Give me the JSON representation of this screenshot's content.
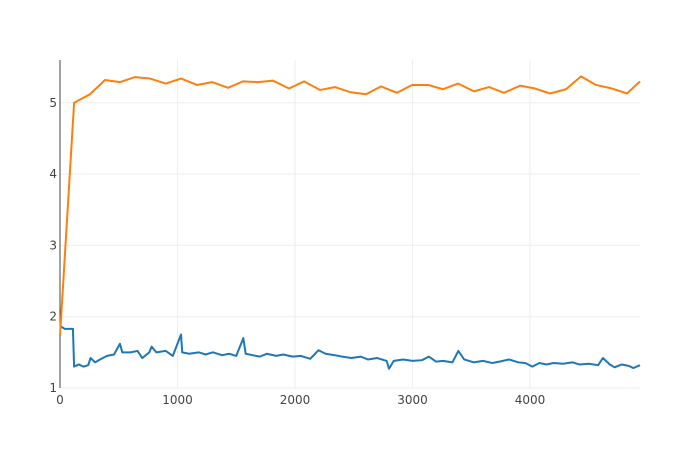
{
  "chart_data": {
    "type": "line",
    "xlim": [
      0,
      4936
    ],
    "xticks": [
      0,
      1000,
      2000,
      3000,
      4000
    ],
    "ylim": [
      1,
      5.6
    ],
    "yticks": [
      1,
      2,
      3,
      4,
      5
    ],
    "grid": true,
    "series": [
      {
        "color": "#1f77b4",
        "x": [
          0,
          40,
          110,
          120,
          160,
          200,
          240,
          260,
          300,
          340,
          400,
          460,
          510,
          530,
          600,
          660,
          700,
          760,
          780,
          820,
          900,
          960,
          1030,
          1040,
          1100,
          1180,
          1240,
          1300,
          1380,
          1440,
          1500,
          1560,
          1580,
          1640,
          1700,
          1760,
          1840,
          1900,
          1980,
          2050,
          2130,
          2200,
          2260,
          2340,
          2400,
          2480,
          2560,
          2620,
          2700,
          2780,
          2800,
          2840,
          2920,
          3000,
          3080,
          3140,
          3200,
          3260,
          3340,
          3390,
          3440,
          3520,
          3600,
          3680,
          3740,
          3820,
          3900,
          3960,
          4020,
          4080,
          4140,
          4200,
          4280,
          4360,
          4420,
          4500,
          4580,
          4620,
          4680,
          4720,
          4780,
          4840,
          4880,
          4936
        ],
        "values": [
          1.87,
          1.83,
          1.83,
          1.3,
          1.33,
          1.3,
          1.32,
          1.42,
          1.36,
          1.4,
          1.45,
          1.47,
          1.62,
          1.5,
          1.5,
          1.52,
          1.42,
          1.5,
          1.58,
          1.5,
          1.52,
          1.45,
          1.75,
          1.5,
          1.48,
          1.5,
          1.47,
          1.5,
          1.46,
          1.48,
          1.45,
          1.7,
          1.48,
          1.46,
          1.44,
          1.48,
          1.45,
          1.47,
          1.44,
          1.45,
          1.41,
          1.53,
          1.48,
          1.46,
          1.44,
          1.42,
          1.44,
          1.4,
          1.42,
          1.38,
          1.27,
          1.38,
          1.4,
          1.38,
          1.39,
          1.44,
          1.37,
          1.38,
          1.36,
          1.52,
          1.4,
          1.36,
          1.38,
          1.35,
          1.37,
          1.4,
          1.36,
          1.35,
          1.3,
          1.35,
          1.33,
          1.35,
          1.34,
          1.36,
          1.33,
          1.34,
          1.32,
          1.42,
          1.33,
          1.29,
          1.33,
          1.31,
          1.28,
          1.32
        ]
      },
      {
        "color": "#ff7f0e",
        "x": [
          0,
          120,
          255,
          383,
          510,
          638,
          766,
          900,
          1030,
          1166,
          1294,
          1430,
          1557,
          1685,
          1813,
          1949,
          2077,
          2213,
          2340,
          2468,
          2604,
          2732,
          2868,
          2996,
          3132,
          3260,
          3387,
          3523,
          3651,
          3779,
          3915,
          4043,
          4170,
          4306,
          4434,
          4562,
          4698,
          4826,
          4936
        ],
        "values": [
          1.73,
          5.0,
          5.12,
          5.32,
          5.29,
          5.36,
          5.34,
          5.27,
          5.34,
          5.25,
          5.29,
          5.21,
          5.3,
          5.29,
          5.31,
          5.2,
          5.3,
          5.18,
          5.22,
          5.15,
          5.12,
          5.23,
          5.14,
          5.25,
          5.25,
          5.19,
          5.27,
          5.16,
          5.22,
          5.14,
          5.24,
          5.2,
          5.13,
          5.19,
          5.37,
          5.25,
          5.2,
          5.13,
          5.3
        ]
      }
    ]
  }
}
